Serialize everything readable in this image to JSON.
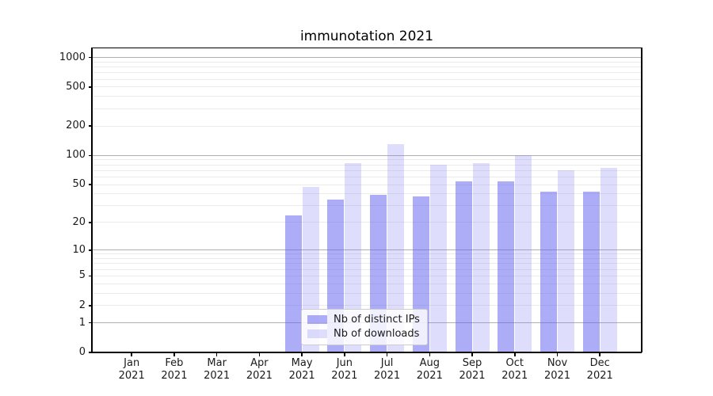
{
  "title": "immunotation 2021",
  "chart_data": {
    "type": "bar",
    "title": "immunotation 2021",
    "categories": [
      "Jan 2021",
      "Feb 2021",
      "Mar 2021",
      "Apr 2021",
      "May 2021",
      "Jun 2021",
      "Jul 2021",
      "Aug 2021",
      "Sep 2021",
      "Oct 2021",
      "Nov 2021",
      "Dec 2021"
    ],
    "series": [
      {
        "name": "Nb of distinct IPs",
        "color": "rgba(98,98,240,0.52)",
        "values": [
          0,
          0,
          0,
          0,
          24,
          35,
          39,
          38,
          54,
          54,
          42,
          42
        ]
      },
      {
        "name": "Nb of downloads",
        "color": "rgba(125,125,242,0.25)",
        "values": [
          0,
          0,
          0,
          0,
          47,
          84,
          131,
          81,
          84,
          101,
          71,
          75
        ]
      }
    ],
    "y_ticks": [
      0,
      1,
      2,
      5,
      10,
      20,
      50,
      100,
      200,
      500,
      1000
    ],
    "y_scale": "log1p",
    "ylim": [
      0,
      1265
    ],
    "xlabel": "",
    "ylabel": "",
    "grid": "major-and-minor-horizontal",
    "legend_position": "lower center",
    "colors": {
      "major_grid": "#b0b0b0",
      "minor_grid": "#ebebeb",
      "spine": "#000000",
      "text": "#1a1a1a",
      "background": "#ffffff"
    }
  }
}
